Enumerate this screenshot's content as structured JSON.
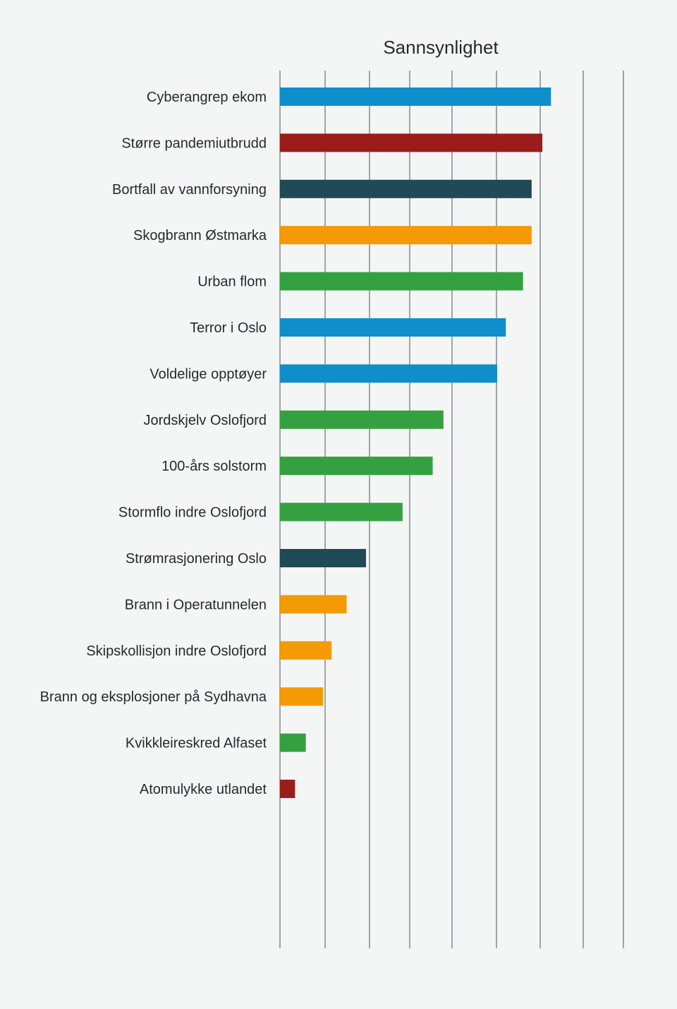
{
  "chart_data": {
    "type": "bar",
    "orientation": "horizontal",
    "title": "Sannsynlighet",
    "xlabel": "",
    "ylabel": "",
    "xlim": [
      0,
      8
    ],
    "grid": true,
    "legend": "none",
    "categories": [
      "Cyberangrep ekom",
      "Større pandemiutbrudd",
      "Bortfall av vannforsyning",
      "Skogbrann Østmarka",
      "Urban flom",
      "Terror i Oslo",
      "Voldelige opptøyer",
      "Jordskjelv Oslofjord",
      "100-års solstorm",
      "Stormflo indre Oslofjord",
      "Strømrasjonering Oslo",
      "Brann i Operatunnelen",
      "Skipskollisjon indre Oslofjord",
      "Brann og eksplosjoner på Sydhavna",
      "Kvikkleireskred Alfaset",
      "Atomulykke utlandet"
    ],
    "values": [
      6.3,
      6.1,
      5.85,
      5.85,
      5.65,
      5.25,
      5.05,
      3.8,
      3.55,
      2.85,
      2.0,
      1.55,
      1.2,
      1.0,
      0.6,
      0.35
    ],
    "colors": [
      "#0e8fcb",
      "#9c1c19",
      "#204a55",
      "#f39a04",
      "#34a040",
      "#0e8fcb",
      "#0e8fcb",
      "#34a040",
      "#34a040",
      "#34a040",
      "#204a55",
      "#f39a04",
      "#f39a04",
      "#f39a04",
      "#34a040",
      "#9c1c19"
    ]
  }
}
